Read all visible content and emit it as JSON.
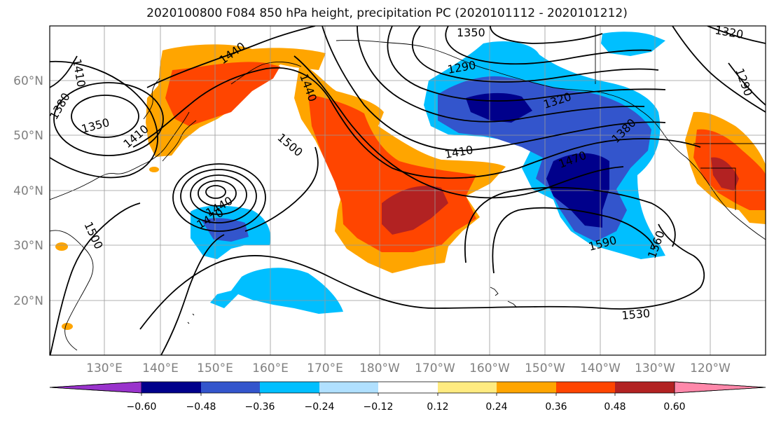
{
  "title": "2020100800 F084 850 hPa height, precipitation PC (2020101112 - 2020101212)",
  "lat_labels": [
    "60°N",
    "50°N",
    "40°N",
    "30°N",
    "20°N"
  ],
  "lon_labels": [
    "130°E",
    "140°E",
    "150°E",
    "160°E",
    "170°E",
    "180°W",
    "170°W",
    "160°W",
    "150°W",
    "140°W",
    "130°W",
    "120°W"
  ],
  "contour_labels": [
    "1350",
    "1440",
    "1410",
    "1380",
    "1350",
    "1410",
    "1440",
    "1500",
    "1290",
    "1320",
    "1410",
    "1470",
    "1380",
    "1590",
    "1560",
    "1530",
    "1470",
    "1440",
    "1500",
    "1290",
    "1320"
  ],
  "colorbar": {
    "tick_labels": [
      "−0.60",
      "−0.48",
      "−0.36",
      "−0.24",
      "−0.12",
      "0.12",
      "0.24",
      "0.36",
      "0.48",
      "0.60"
    ],
    "colors": [
      "#9933cc",
      "#00008b",
      "#3355cc",
      "#00bfff",
      "#b0e0ff",
      "#ffffff",
      "#ffeb80",
      "#ffa500",
      "#ff4500",
      "#b22222",
      "#ff88aa"
    ]
  }
}
